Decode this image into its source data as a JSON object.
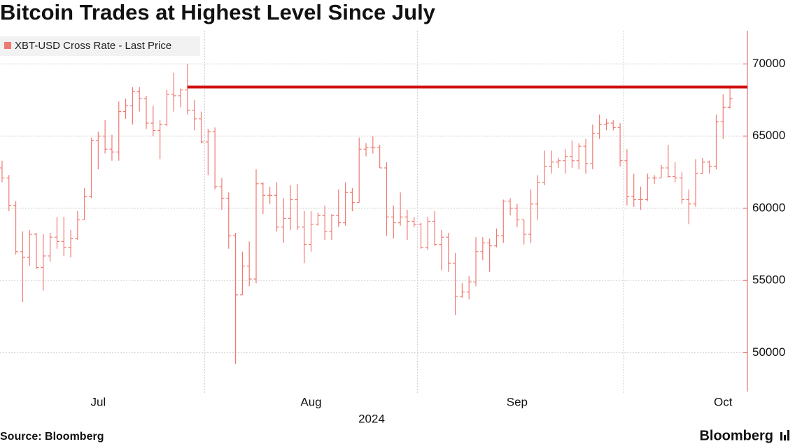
{
  "chart_data": {
    "type": "ohlc",
    "title": "Bitcoin Trades at Highest Level Since July",
    "source": "Source: Bloomberg",
    "brand": "Bloomberg",
    "x_axis_label": "2024",
    "xlim": [
      -0.3,
      106.5
    ],
    "xticks": [
      {
        "value": 14,
        "label": "Jul"
      },
      {
        "value": 45,
        "label": "Aug"
      },
      {
        "value": 75,
        "label": "Sep"
      },
      {
        "value": 105,
        "label": "Oct"
      }
    ],
    "x_grid": [
      29.5,
      60.5,
      90.5
    ],
    "ylim": [
      47400,
      72300
    ],
    "yticks": [
      50000,
      55000,
      60000,
      65000,
      70000
    ],
    "grid": true,
    "legend": "top-left",
    "reference_line": {
      "value": 68400,
      "start": 27,
      "color": "#d01010"
    },
    "series": [
      {
        "name": "XBT-USD Cross Rate - Last Price",
        "color": "#ee7b73",
        "open": [
          62800,
          62100,
          60200,
          57000,
          56600,
          58200,
          55900,
          56700,
          58000,
          57700,
          57300,
          57900,
          59200,
          60800,
          64700,
          65000,
          64100,
          63900,
          66700,
          67100,
          68100,
          67600,
          65900,
          65400,
          65800,
          67900,
          67800,
          68200,
          66800,
          66200,
          64600,
          65300,
          61500,
          60700,
          58100,
          54000,
          56000,
          55100,
          61700,
          60900,
          60900,
          58700,
          59300,
          60600,
          58700,
          57500,
          58900,
          59500,
          58400,
          59500,
          59000,
          61100,
          60400,
          64100,
          64200,
          64200,
          62800,
          59400,
          59000,
          59400,
          59100,
          58900,
          57300,
          59100,
          57500,
          58000,
          56200,
          53900,
          54200,
          54900,
          57000,
          57600,
          57400,
          58100,
          60500,
          60000,
          59200,
          58200,
          60300,
          61800,
          62900,
          63200,
          63300,
          63600,
          63300,
          64300,
          63100,
          65200,
          65800,
          65900,
          65600,
          63300,
          60800,
          60600,
          60600,
          62100,
          62100,
          62800,
          62200,
          62100,
          60600,
          60300,
          62400,
          63200,
          62900,
          66000,
          67000
        ],
        "high": [
          63300,
          62300,
          60500,
          58400,
          58500,
          58300,
          58200,
          58300,
          59400,
          59400,
          58500,
          59800,
          61400,
          64900,
          65300,
          66100,
          65100,
          67400,
          67600,
          68400,
          68400,
          67800,
          67100,
          66100,
          68200,
          69400,
          68300,
          70000,
          67500,
          66700,
          65500,
          65600,
          62100,
          61100,
          58300,
          57000,
          57700,
          62700,
          61800,
          61500,
          61800,
          60700,
          61600,
          61700,
          59800,
          59800,
          59700,
          60200,
          59600,
          61300,
          61800,
          61400,
          64900,
          64500,
          65000,
          64400,
          63200,
          60200,
          61100,
          59900,
          59400,
          59000,
          59400,
          59800,
          58500,
          58300,
          56900,
          54800,
          55300,
          58000,
          58000,
          57900,
          58600,
          60600,
          60700,
          60300,
          59200,
          61300,
          62300,
          64000,
          64000,
          63500,
          64100,
          64700,
          64500,
          64800,
          65800,
          66500,
          66200,
          66100,
          65900,
          64100,
          62400,
          61500,
          62400,
          62300,
          63000,
          64400,
          63200,
          62500,
          61300,
          63400,
          63500,
          63300,
          66500,
          67900,
          68400
        ],
        "low": [
          61800,
          59800,
          56800,
          53500,
          56000,
          55800,
          54300,
          56300,
          57200,
          56700,
          56600,
          57800,
          59200,
          60700,
          62700,
          63800,
          63300,
          63300,
          66200,
          65800,
          66700,
          65500,
          65000,
          63400,
          65700,
          66700,
          67000,
          66500,
          65400,
          64500,
          62300,
          61300,
          59900,
          57200,
          49200,
          54000,
          54600,
          54800,
          59600,
          60300,
          58400,
          57600,
          58500,
          58500,
          56200,
          57000,
          58800,
          57800,
          57800,
          58700,
          58800,
          59800,
          60400,
          63600,
          63800,
          62800,
          58100,
          57900,
          58800,
          57800,
          58700,
          57200,
          57100,
          57400,
          55700,
          55600,
          52600,
          53800,
          53700,
          54600,
          56400,
          55600,
          57300,
          57600,
          59500,
          58700,
          57500,
          57600,
          59200,
          61600,
          62400,
          62800,
          62400,
          62800,
          62700,
          62400,
          62700,
          64800,
          65400,
          65400,
          62900,
          60200,
          60100,
          59900,
          60500,
          61700,
          62100,
          62100,
          61800,
          60300,
          58900,
          60100,
          62400,
          62400,
          62700,
          64800,
          66900
        ],
        "close": [
          62100,
          60200,
          57000,
          56600,
          58200,
          55900,
          56700,
          58000,
          57700,
          57300,
          57900,
          59200,
          60800,
          64700,
          65000,
          64100,
          63900,
          66700,
          67100,
          68100,
          67600,
          65900,
          65400,
          65800,
          67900,
          67800,
          68200,
          66800,
          66200,
          64600,
          65300,
          61500,
          60700,
          58100,
          54000,
          56000,
          55100,
          61700,
          60900,
          60900,
          58700,
          59300,
          60600,
          58700,
          57500,
          58900,
          59500,
          58400,
          59500,
          59000,
          61100,
          60400,
          64100,
          64200,
          64200,
          62800,
          59400,
          59000,
          59400,
          59100,
          58900,
          57300,
          59100,
          57500,
          58000,
          56200,
          53900,
          54200,
          54900,
          57000,
          57600,
          57400,
          58100,
          60500,
          60000,
          59200,
          58200,
          60300,
          61800,
          62900,
          63200,
          63300,
          63600,
          63300,
          64300,
          63100,
          65200,
          65800,
          65900,
          65600,
          63300,
          60800,
          60600,
          60600,
          62100,
          62100,
          62800,
          62200,
          62100,
          60600,
          60300,
          62400,
          63200,
          62900,
          66000,
          67000,
          67600
        ]
      }
    ]
  }
}
